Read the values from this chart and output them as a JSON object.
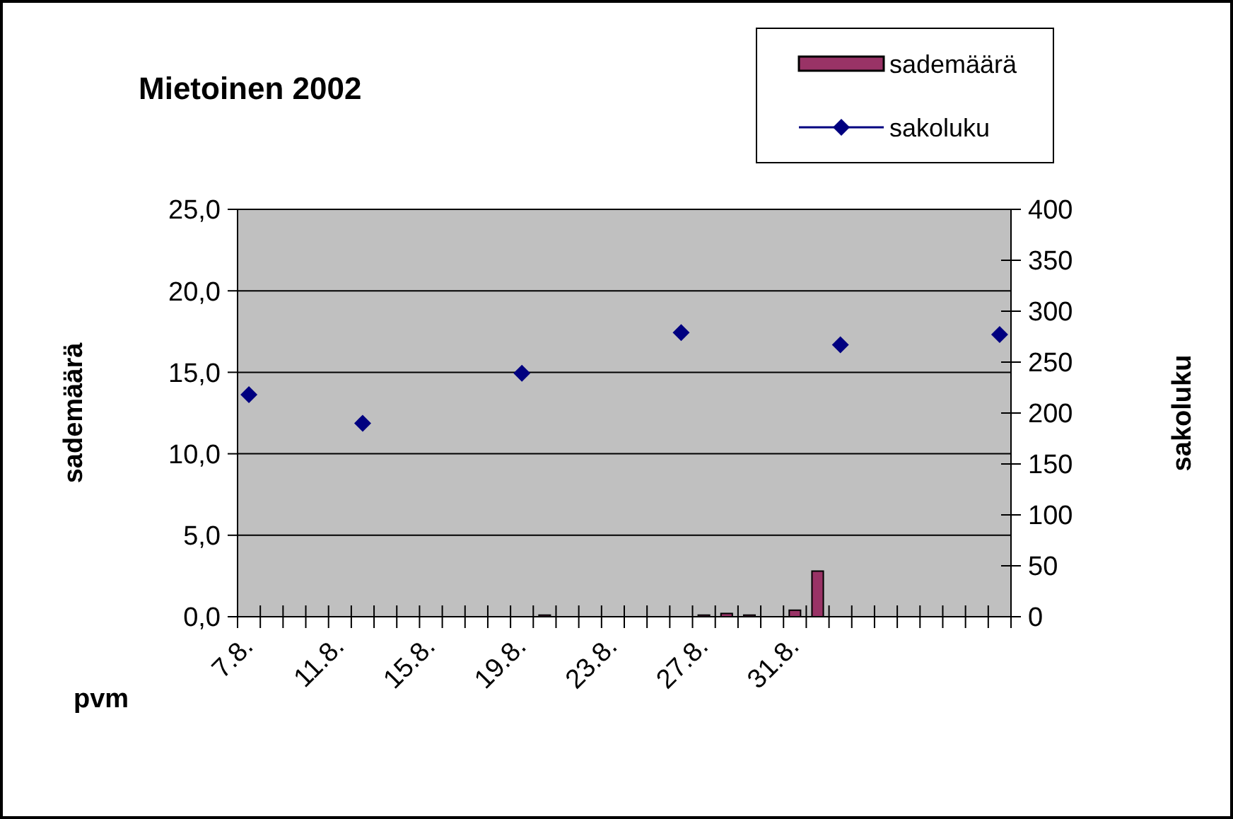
{
  "chart_data": {
    "type": "bar",
    "title": "Mietoinen 2002",
    "xlabel": "pvm",
    "ylabel": "sademäärä",
    "y2label": "sakoluku",
    "categories": [
      "7.8.",
      null,
      null,
      null,
      "11.8.",
      null,
      null,
      null,
      "15.8.",
      null,
      null,
      null,
      "19.8.",
      null,
      null,
      null,
      "23.8.",
      null,
      null,
      null,
      "27.8.",
      null,
      null,
      null,
      "31.8.",
      null,
      null,
      null,
      null,
      null,
      null,
      null,
      null,
      null
    ],
    "series": [
      {
        "name": "sademäärä",
        "color": "#993366",
        "values": [
          null,
          null,
          null,
          null,
          null,
          null,
          null,
          null,
          null,
          null,
          null,
          null,
          null,
          0.1,
          null,
          null,
          null,
          null,
          null,
          null,
          0.1,
          0.2,
          0.1,
          null,
          0.4,
          2.8,
          null,
          null,
          null,
          null,
          null,
          null,
          null,
          null
        ]
      },
      {
        "name": "sakoluku",
        "type": "scatter",
        "axis": "y2",
        "color": "#000080",
        "marker": "diamond",
        "values": [
          218,
          null,
          null,
          null,
          null,
          190,
          null,
          null,
          null,
          null,
          null,
          null,
          239,
          null,
          null,
          null,
          null,
          null,
          null,
          279,
          null,
          null,
          null,
          null,
          null,
          null,
          267,
          null,
          null,
          null,
          null,
          null,
          null,
          277
        ]
      }
    ],
    "ylim": [
      0,
      25
    ],
    "yticks": [
      {
        "value": 0,
        "label": "0,0"
      },
      {
        "value": 5,
        "label": "5,0"
      },
      {
        "value": 10,
        "label": "10,0"
      },
      {
        "value": 15,
        "label": "15,0"
      },
      {
        "value": 20,
        "label": "20,0"
      },
      {
        "value": 25,
        "label": "25,0"
      }
    ],
    "y2lim": [
      0,
      400
    ],
    "y2ticks": [
      0,
      50,
      100,
      150,
      200,
      250,
      300,
      350,
      400
    ],
    "grid": "y",
    "legend": "top right"
  }
}
